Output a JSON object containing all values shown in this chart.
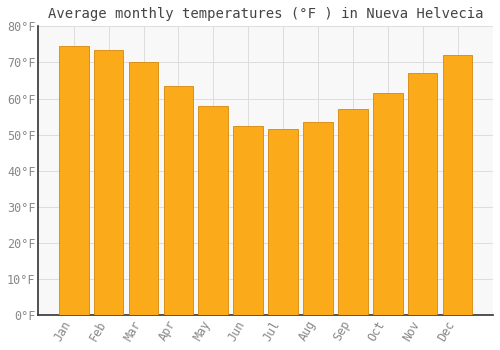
{
  "title": "Average monthly temperatures (°F ) in Nueva Helvecia",
  "months": [
    "Jan",
    "Feb",
    "Mar",
    "Apr",
    "May",
    "Jun",
    "Jul",
    "Aug",
    "Sep",
    "Oct",
    "Nov",
    "Dec"
  ],
  "values": [
    74.5,
    73.5,
    70.0,
    63.5,
    58.0,
    52.5,
    51.5,
    53.5,
    57.0,
    61.5,
    67.0,
    72.0
  ],
  "bar_color": "#FBAA19",
  "bar_edge_color": "#D4880A",
  "background_color": "#FFFFFF",
  "plot_bg_color": "#F8F8F8",
  "grid_color": "#DDDDDD",
  "ylim": [
    0,
    80
  ],
  "yticks": [
    0,
    10,
    20,
    30,
    40,
    50,
    60,
    70,
    80
  ],
  "ytick_labels": [
    "0°F",
    "10°F",
    "20°F",
    "30°F",
    "40°F",
    "50°F",
    "60°F",
    "70°F",
    "80°F"
  ],
  "title_fontsize": 10,
  "tick_fontsize": 8.5,
  "title_color": "#444444",
  "tick_color": "#888888",
  "font_family": "monospace"
}
